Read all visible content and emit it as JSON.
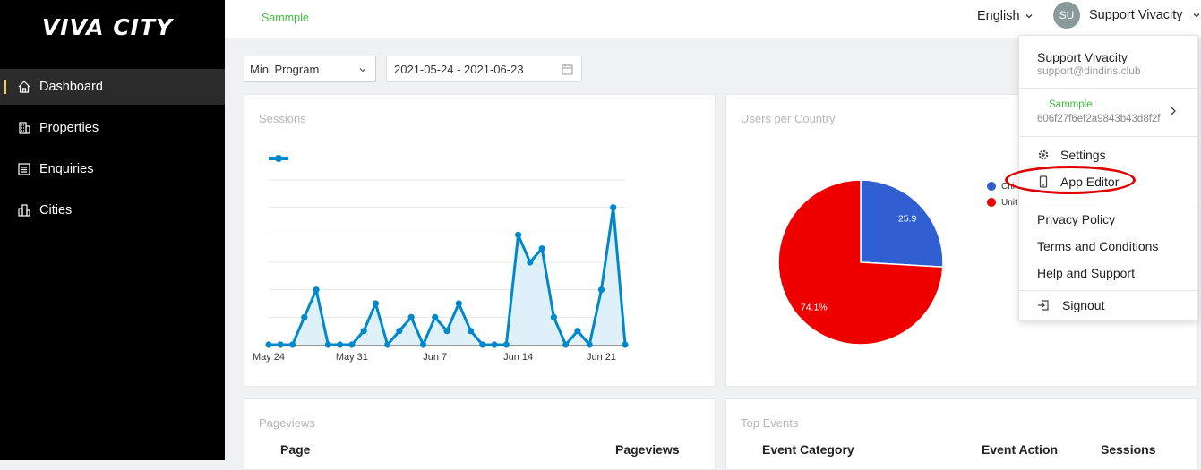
{
  "sidebar": {
    "logo": "VIVA CITY",
    "items": [
      {
        "label": "Dashboard",
        "icon": "home-icon",
        "active": true
      },
      {
        "label": "Properties",
        "icon": "building-icon"
      },
      {
        "label": "Enquiries",
        "icon": "list-icon"
      },
      {
        "label": "Cities",
        "icon": "city-icon"
      }
    ]
  },
  "header": {
    "brand": "Sammple",
    "language": "English",
    "user": {
      "initials": "SU",
      "name": "Support Vivacity"
    }
  },
  "filters": {
    "platform": "Mini Program",
    "date_range": "2021-05-24 - 2021-06-23"
  },
  "sessions": {
    "title": "Sessions",
    "chart_data": {
      "type": "area",
      "series": [
        {
          "values": [
            0,
            0,
            0,
            1,
            2,
            0,
            0,
            0,
            0.5,
            1.5,
            0,
            0.5,
            1,
            0,
            1,
            0.5,
            1.5,
            0.5,
            0,
            0,
            0,
            4,
            3,
            3.5,
            1,
            0,
            0.5,
            0,
            2,
            5,
            0
          ]
        }
      ],
      "x_ticks": [
        "May 24",
        "May 31",
        "Jun 7",
        "Jun 14",
        "Jun 21"
      ],
      "ylim": [
        0,
        6
      ],
      "grid": true,
      "colors": {
        "line": "#0088cc",
        "fill": "#dff0f8"
      }
    }
  },
  "users_per_country": {
    "title": "Users per Country",
    "chart_data": {
      "type": "pie",
      "slices": [
        {
          "name": "Chi",
          "value": 25.9,
          "label": "25.9",
          "color": "#2f5fd0"
        },
        {
          "name": "Unit",
          "value": 74.1,
          "label": "74.1%",
          "color": "#ee0000"
        }
      ]
    }
  },
  "pageviews": {
    "title": "Pageviews",
    "columns": [
      "Page",
      "Pageviews"
    ]
  },
  "top_events": {
    "title": "Top Events",
    "columns": [
      "Event Category",
      "Event Action",
      "Sessions"
    ]
  },
  "dropdown": {
    "name": "Support Vivacity",
    "email": "support@dindins.club",
    "app_name": "Sammple",
    "app_id": "606f27f6ef2a9843b43d8f2f",
    "settings": "Settings",
    "app_editor": "App Editor",
    "privacy": "Privacy Policy",
    "terms": "Terms and Conditions",
    "help": "Help and Support",
    "signout": "Signout"
  }
}
